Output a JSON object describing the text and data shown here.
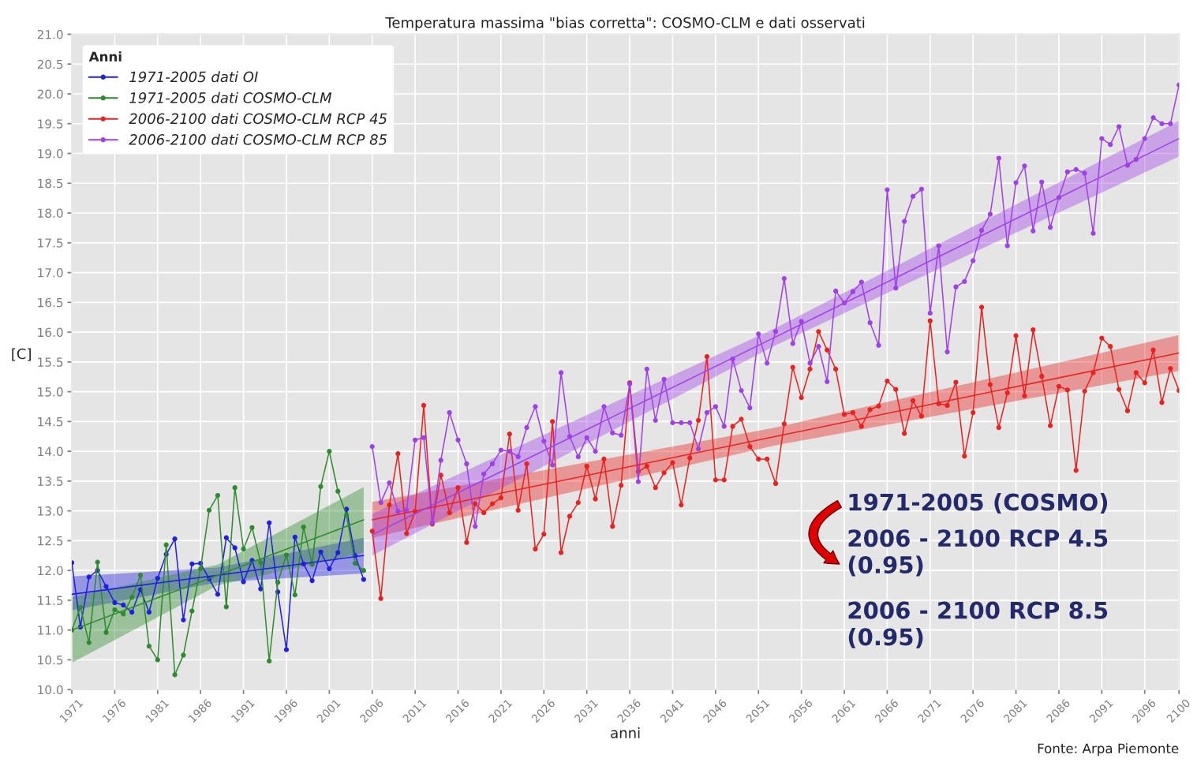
{
  "chart_data": {
    "type": "line",
    "title": "Temperatura massima \"bias corretta\": COSMO-CLM e dati osservati",
    "xlabel": "anni",
    "ylabel": "[C]",
    "legend_title": "Anni",
    "legend": "top left",
    "grid": true,
    "marker": "circle",
    "line_style": "solid",
    "xlim": [
      1971,
      2100
    ],
    "ylim": [
      10,
      21
    ],
    "xticks": [
      1971,
      1976,
      1981,
      1986,
      1991,
      1996,
      2001,
      2006,
      2011,
      2016,
      2021,
      2026,
      2031,
      2036,
      2041,
      2046,
      2051,
      2056,
      2061,
      2066,
      2071,
      2076,
      2081,
      2086,
      2091,
      2096,
      2100
    ],
    "yticks": [
      {
        "value": 10,
        "label": "10.0"
      },
      {
        "value": 10.5,
        "label": "10.5"
      },
      {
        "value": 11,
        "label": "11.0"
      },
      {
        "value": 11.5,
        "label": "11.5"
      },
      {
        "value": 12,
        "label": "12.0"
      },
      {
        "value": 12.5,
        "label": "12.5"
      },
      {
        "value": 13,
        "label": "13.0"
      },
      {
        "value": 13.5,
        "label": "13.5"
      },
      {
        "value": 14,
        "label": "14.0"
      },
      {
        "value": 14.5,
        "label": "14.5"
      },
      {
        "value": 15,
        "label": "15.0"
      },
      {
        "value": 15.5,
        "label": "15.5"
      },
      {
        "value": 16,
        "label": "16.0"
      },
      {
        "value": 16.5,
        "label": "16.5"
      },
      {
        "value": 17,
        "label": "17.0"
      },
      {
        "value": 17.5,
        "label": "17.5"
      },
      {
        "value": 18,
        "label": "18.0"
      },
      {
        "value": 18.5,
        "label": "18.5"
      },
      {
        "value": 19,
        "label": "19.0"
      },
      {
        "value": 19.5,
        "label": "19.5"
      },
      {
        "value": 20,
        "label": "20.0"
      },
      {
        "value": 20.5,
        "label": "20.5"
      },
      {
        "value": 21,
        "label": "21.0"
      }
    ],
    "series": [
      {
        "name": "1971-2005 dati OI",
        "color": "#2020e0",
        "x": [
          1971,
          1972,
          1973,
          1974,
          1975,
          1976,
          1977,
          1978,
          1979,
          1980,
          1981,
          1982,
          1983,
          1984,
          1985,
          1986,
          1987,
          1988,
          1989,
          1990,
          1991,
          1992,
          1993,
          1994,
          1995,
          1996,
          1997,
          1998,
          1999,
          2000,
          2001,
          2002,
          2003,
          2004,
          2005
        ],
        "values": [
          12.13,
          11.05,
          11.89,
          12.0,
          11.73,
          11.46,
          11.42,
          11.3,
          11.68,
          11.3,
          11.87,
          12.27,
          12.53,
          11.17,
          12.11,
          12.12,
          11.86,
          11.6,
          12.55,
          12.38,
          11.81,
          12.17,
          11.69,
          12.8,
          11.64,
          10.67,
          12.56,
          12.11,
          11.83,
          12.31,
          12.03,
          12.3,
          13.03,
          12.25,
          11.85
        ]
      },
      {
        "name": "1971-2005 dati COSMO-CLM",
        "color": "#2e8b2e",
        "x": [
          1971,
          1972,
          1973,
          1974,
          1975,
          1976,
          1977,
          1978,
          1979,
          1980,
          1981,
          1982,
          1983,
          1984,
          1985,
          1986,
          1987,
          1988,
          1989,
          1990,
          1991,
          1992,
          1993,
          1994,
          1995,
          1996,
          1997,
          1998,
          1999,
          2000,
          2001,
          2002,
          2003,
          2004,
          2005
        ],
        "values": [
          11.0,
          11.38,
          10.79,
          12.14,
          10.96,
          11.34,
          11.27,
          11.55,
          11.92,
          10.73,
          10.5,
          12.43,
          10.25,
          10.58,
          11.32,
          12.03,
          13.01,
          13.26,
          11.39,
          13.39,
          12.36,
          12.72,
          12.13,
          10.48,
          11.8,
          12.26,
          11.59,
          12.73,
          12.1,
          13.41,
          14.0,
          13.33,
          12.93,
          12.12,
          12.0
        ]
      },
      {
        "name": "2006-2100 dati COSMO-CLM RCP 45",
        "color": "#e8231f",
        "x": [
          2006,
          2007,
          2008,
          2009,
          2010,
          2011,
          2012,
          2013,
          2014,
          2015,
          2016,
          2017,
          2018,
          2019,
          2020,
          2021,
          2022,
          2023,
          2024,
          2025,
          2026,
          2027,
          2028,
          2029,
          2030,
          2031,
          2032,
          2033,
          2034,
          2035,
          2036,
          2037,
          2038,
          2039,
          2040,
          2041,
          2042,
          2043,
          2044,
          2045,
          2046,
          2047,
          2048,
          2049,
          2050,
          2051,
          2052,
          2053,
          2054,
          2055,
          2056,
          2057,
          2058,
          2059,
          2060,
          2061,
          2062,
          2063,
          2064,
          2065,
          2066,
          2067,
          2068,
          2069,
          2070,
          2071,
          2072,
          2073,
          2074,
          2075,
          2076,
          2077,
          2078,
          2079,
          2080,
          2081,
          2082,
          2083,
          2084,
          2085,
          2086,
          2087,
          2088,
          2089,
          2090,
          2091,
          2092,
          2093,
          2094,
          2095,
          2096,
          2097,
          2098,
          2099,
          2100
        ],
        "values": [
          12.66,
          11.53,
          13.1,
          13.96,
          12.62,
          12.99,
          14.77,
          12.78,
          13.6,
          12.97,
          13.39,
          12.47,
          13.12,
          12.97,
          13.12,
          13.22,
          14.29,
          13.01,
          13.79,
          12.36,
          12.61,
          14.5,
          12.3,
          12.91,
          13.14,
          13.75,
          13.2,
          13.87,
          12.74,
          13.43,
          15.15,
          13.66,
          13.75,
          13.39,
          13.64,
          13.81,
          13.1,
          13.89,
          14.52,
          15.59,
          13.52,
          13.52,
          14.42,
          14.54,
          14.08,
          13.87,
          13.87,
          13.46,
          14.46,
          15.41,
          14.9,
          15.38,
          16.01,
          15.7,
          15.38,
          14.62,
          14.65,
          14.42,
          14.7,
          14.76,
          15.18,
          15.04,
          14.3,
          14.85,
          14.59,
          16.19,
          14.8,
          14.77,
          15.16,
          13.92,
          14.65,
          16.42,
          15.12,
          14.4,
          14.98,
          15.94,
          14.93,
          16.04,
          15.26,
          14.43,
          15.09,
          15.03,
          13.68,
          15.01,
          15.32,
          15.9,
          15.76,
          15.04,
          14.68,
          15.32,
          15.15,
          15.7,
          14.82,
          15.39,
          15.02
        ]
      },
      {
        "name": "2006-2100 dati COSMO-CLM RCP 85",
        "color": "#a040e8",
        "x": [
          2006,
          2007,
          2008,
          2009,
          2010,
          2011,
          2012,
          2013,
          2014,
          2015,
          2016,
          2017,
          2018,
          2019,
          2020,
          2021,
          2022,
          2023,
          2024,
          2025,
          2026,
          2027,
          2028,
          2029,
          2030,
          2031,
          2032,
          2033,
          2034,
          2035,
          2036,
          2037,
          2038,
          2039,
          2040,
          2041,
          2042,
          2043,
          2044,
          2045,
          2046,
          2047,
          2048,
          2049,
          2050,
          2051,
          2052,
          2053,
          2054,
          2055,
          2056,
          2057,
          2058,
          2059,
          2060,
          2061,
          2062,
          2063,
          2064,
          2065,
          2066,
          2067,
          2068,
          2069,
          2070,
          2071,
          2072,
          2073,
          2074,
          2075,
          2076,
          2077,
          2078,
          2079,
          2080,
          2081,
          2082,
          2083,
          2084,
          2085,
          2086,
          2087,
          2088,
          2089,
          2090,
          2091,
          2092,
          2093,
          2094,
          2095,
          2096,
          2097,
          2098,
          2099,
          2100
        ],
        "values": [
          14.08,
          13.14,
          13.47,
          12.99,
          13.01,
          14.19,
          14.23,
          12.8,
          13.85,
          14.65,
          14.19,
          13.79,
          12.74,
          13.62,
          13.79,
          14.02,
          14.0,
          13.91,
          14.4,
          14.75,
          14.17,
          13.77,
          15.32,
          14.25,
          13.91,
          14.23,
          14.0,
          14.75,
          14.31,
          14.27,
          15.13,
          13.49,
          15.38,
          14.52,
          15.21,
          14.48,
          14.48,
          14.48,
          14.04,
          14.65,
          14.75,
          14.42,
          15.55,
          15.02,
          14.73,
          15.97,
          15.48,
          16.01,
          16.9,
          15.81,
          16.18,
          15.48,
          15.76,
          15.17,
          16.69,
          16.49,
          16.68,
          16.84,
          16.16,
          15.78,
          18.39,
          16.74,
          17.86,
          18.28,
          18.4,
          16.32,
          17.45,
          15.67,
          16.76,
          16.85,
          17.2,
          17.71,
          17.98,
          18.92,
          17.45,
          18.51,
          18.79,
          17.7,
          18.52,
          17.76,
          18.26,
          18.69,
          18.73,
          18.67,
          17.66,
          19.25,
          19.15,
          19.45,
          18.8,
          18.9,
          19.25,
          19.6,
          19.5,
          19.5,
          20.15
        ]
      },
      {
        "color": "#2020e0",
        "marker": "none",
        "x": [
          1971,
          1988,
          2005
        ],
        "values": [
          11.6,
          11.92,
          12.25
        ],
        "lower": [
          11.33,
          11.8,
          11.95
        ],
        "upper": [
          11.9,
          12.05,
          12.55
        ]
      },
      {
        "color": "#2e8b2e",
        "marker": "none",
        "x": [
          1971,
          1988,
          2005
        ],
        "values": [
          11.0,
          11.92,
          12.85
        ],
        "lower": [
          10.45,
          11.75,
          12.3
        ],
        "upper": [
          11.55,
          12.1,
          13.4
        ]
      },
      {
        "color": "#e8231f",
        "marker": "none",
        "x": [
          2006,
          2053,
          2100
        ],
        "values": [
          12.85,
          14.25,
          15.65
        ],
        "lower": [
          12.55,
          14.1,
          15.35
        ],
        "upper": [
          13.15,
          14.4,
          15.95
        ]
      },
      {
        "color": "#a040e8",
        "marker": "none",
        "x": [
          2006,
          2053,
          2100
        ],
        "values": [
          12.6,
          15.92,
          19.25
        ],
        "lower": [
          12.25,
          15.78,
          18.95
        ],
        "upper": [
          12.95,
          16.07,
          19.55
        ]
      }
    ],
    "annotations": [
      "1971-2005 (COSMO)",
      "2006 - 2100 RCP 4.5 (0.95)",
      "2006 - 2100 RCP 8.5 (0.95)",
      "Fonte: Arpa Piemonte"
    ]
  }
}
